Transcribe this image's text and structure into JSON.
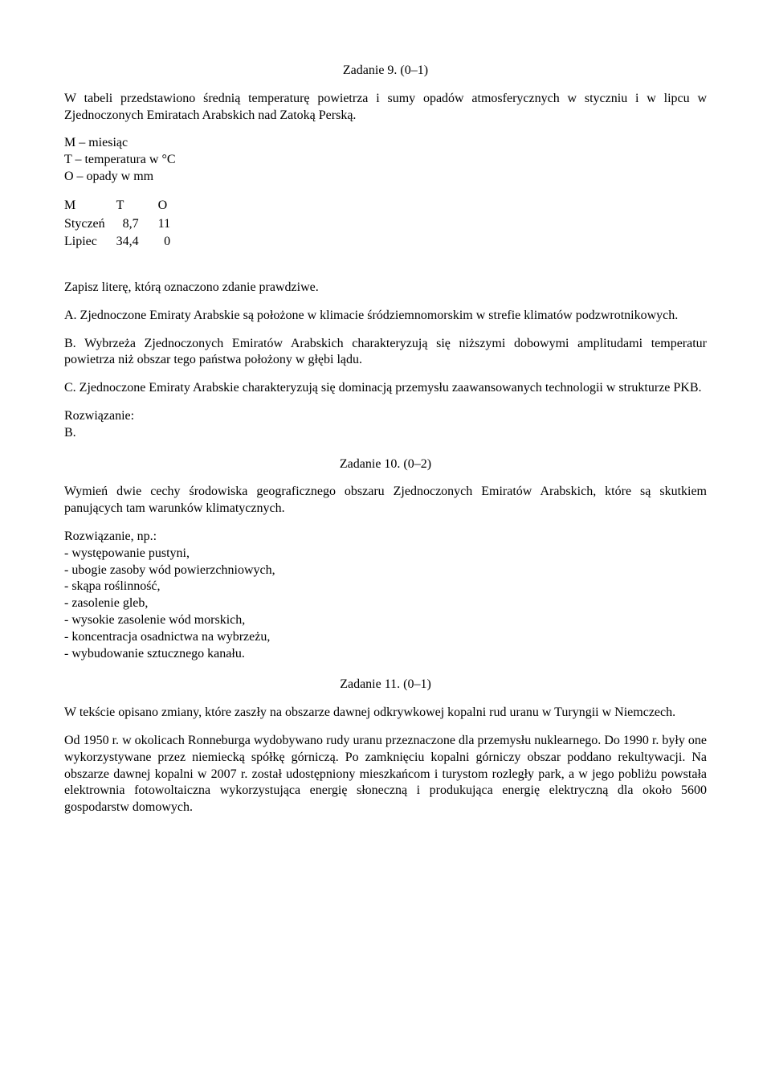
{
  "task9": {
    "title": "Zadanie 9. (0–1)",
    "intro": "W tabeli przedstawiono średnią temperaturę powietrza i sumy opadów atmosferycznych w styczniu i w lipcu w Zjednoczonych Emiratach Arabskich nad Zatoką Perską.",
    "legend": {
      "m": "M – miesiąc",
      "t": "T – temperatura w °C",
      "o": "O – opady w mm"
    },
    "table": {
      "headers": [
        "M",
        "T",
        "O"
      ],
      "rows": [
        [
          "Styczeń",
          "8,7",
          "11"
        ],
        [
          "Lipiec",
          "34,4",
          "0"
        ]
      ]
    },
    "instruction": "Zapisz literę, którą oznaczono zdanie prawdziwe.",
    "optA": "A. Zjednoczone Emiraty Arabskie są położone w klimacie śródziemnomorskim w strefie klimatów podzwrotnikowych.",
    "optB": "B. Wybrzeża Zjednoczonych Emiratów Arabskich charakteryzują się niższymi dobowymi amplitudami temperatur powietrza niż obszar tego państwa położony w głębi lądu.",
    "optC": "C. Zjednoczone Emiraty Arabskie charakteryzują się dominacją przemysłu zaawansowanych technologii w strukturze PKB.",
    "solutionLabel": "Rozwiązanie:",
    "solution": "B."
  },
  "task10": {
    "title": "Zadanie 10. (0–2)",
    "instruction": "Wymień dwie cechy środowiska geograficznego obszaru Zjednoczonych Emiratów Arabskich, które są skutkiem panujących tam warunków klimatycznych.",
    "solutionLabel": "Rozwiązanie, np.:",
    "items": [
      "- występowanie pustyni,",
      "- ubogie zasoby wód powierzchniowych,",
      "- skąpa roślinność,",
      "- zasolenie gleb,",
      "- wysokie zasolenie wód morskich,",
      "- koncentracja osadnictwa na wybrzeżu,",
      "- wybudowanie sztucznego kanału."
    ]
  },
  "task11": {
    "title": "Zadanie 11. (0–1)",
    "p1": "W tekście opisano zmiany, które zaszły na obszarze dawnej odkrywkowej kopalni rud uranu w Turyngii w Niemczech.",
    "p2": "Od 1950 r. w okolicach Ronneburga wydobywano rudy uranu przeznaczone dla przemysłu nuklearnego. Do 1990 r. były one wykorzystywane przez niemiecką spółkę górniczą. Po zamknięciu kopalni górniczy obszar poddano rekultywacji. Na obszarze dawnej kopalni w 2007 r. został udostępniony mieszkańcom i turystom rozległy park, a w jego pobliżu powstała elektrownia fotowoltaiczna wykorzystująca energię słoneczną i produkująca energię elektryczną dla około 5600 gospodarstw domowych."
  }
}
